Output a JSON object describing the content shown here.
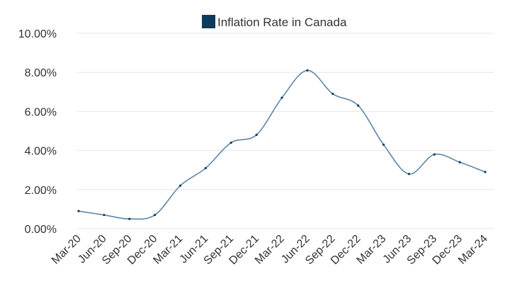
{
  "chart_data": {
    "type": "line",
    "legend": {
      "position": "top-center"
    },
    "series": [
      {
        "name": "Inflation Rate in Canada",
        "color": "#0d3b5e",
        "values": [
          0.9,
          0.7,
          0.5,
          0.7,
          2.2,
          3.1,
          4.4,
          4.8,
          6.7,
          8.1,
          6.9,
          6.3,
          4.3,
          2.8,
          3.8,
          3.4,
          2.9
        ]
      }
    ],
    "categories": [
      "Mar-20",
      "",
      "Jun-20",
      "",
      "Sep-20",
      "",
      "Dec-20",
      "",
      "",
      "",
      "",
      "",
      "",
      "",
      "",
      "",
      ""
    ],
    "x_ticks": [
      "Mar-20",
      "Jun-20",
      "Sep-20",
      "Dec-20",
      "Mar-21",
      "Jun-21",
      "Sep-21",
      "Dec-21",
      "Mar-22",
      "Jun-22",
      "Sep-22",
      "Dec-22",
      "Mar-23",
      "Jun-23",
      "Sep-23",
      "Dec-23",
      "Mar-24"
    ],
    "y_ticks": [
      "0.00%",
      "2.00%",
      "4.00%",
      "6.00%",
      "8.00%",
      "10.00%"
    ],
    "ylim": [
      0,
      10
    ],
    "grid": true,
    "xlabel": "",
    "ylabel": ""
  }
}
